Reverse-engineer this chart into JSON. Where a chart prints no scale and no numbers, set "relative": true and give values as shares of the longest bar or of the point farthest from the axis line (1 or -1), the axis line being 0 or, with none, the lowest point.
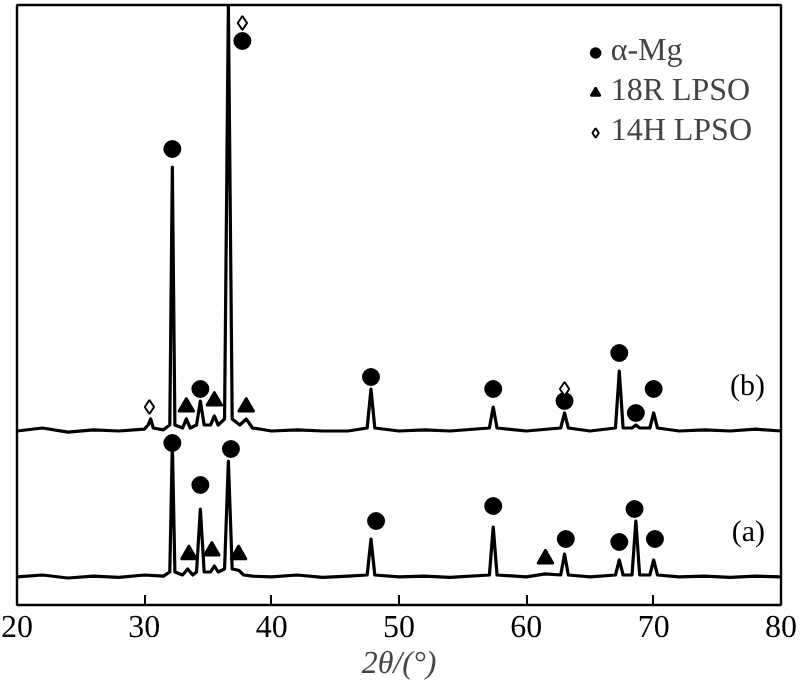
{
  "chart_data": {
    "type": "line",
    "relative": true,
    "xlabel": "2θ/(°)",
    "xlim": [
      20,
      80
    ],
    "xticks": [
      20,
      30,
      40,
      50,
      60,
      70,
      80
    ],
    "grid": false,
    "legend": "top right",
    "line_style": "solid",
    "annotations": [
      "(b)",
      "(a)"
    ],
    "series": [
      {
        "color": "#000000",
        "x": [
          20,
          22,
          24,
          26,
          28,
          30,
          30.3,
          30.5,
          30.7,
          31.5,
          32,
          32.2,
          32.4,
          33,
          33.3,
          33.6,
          34.1,
          34.4,
          34.7,
          35.2,
          35.5,
          35.8,
          36.3,
          36.6,
          36.9,
          37.5,
          38,
          38.5,
          40,
          42,
          44,
          46,
          47.5,
          47.8,
          48.1,
          50,
          52,
          54,
          57.1,
          57.4,
          57.7,
          60,
          62.7,
          63,
          63.3,
          65,
          67,
          67.3,
          67.6,
          68.3,
          68.6,
          68.9,
          69.7,
          70,
          70.3,
          72,
          74,
          76,
          78,
          80
        ],
        "values": [
          0.29,
          0.295,
          0.288,
          0.292,
          0.29,
          0.293,
          0.3,
          0.31,
          0.295,
          0.292,
          0.3,
          0.73,
          0.3,
          0.295,
          0.31,
          0.295,
          0.3,
          0.34,
          0.3,
          0.3,
          0.315,
          0.3,
          0.31,
          1.0,
          0.31,
          0.3,
          0.31,
          0.295,
          0.29,
          0.292,
          0.29,
          0.29,
          0.295,
          0.36,
          0.295,
          0.29,
          0.292,
          0.29,
          0.295,
          0.33,
          0.295,
          0.29,
          0.295,
          0.32,
          0.295,
          0.29,
          0.295,
          0.39,
          0.295,
          0.295,
          0.3,
          0.295,
          0.295,
          0.32,
          0.295,
          0.29,
          0.292,
          0.29,
          0.293,
          0.29
        ]
      },
      {
        "color": "#000000",
        "x": [
          20,
          22,
          24,
          26,
          28,
          30,
          31.5,
          32,
          32.2,
          32.4,
          33,
          33.4,
          33.8,
          34.1,
          34.4,
          34.7,
          35.2,
          35.5,
          35.8,
          36.3,
          36.6,
          36.9,
          37.4,
          37.8,
          38.5,
          40,
          42,
          44,
          46,
          47.5,
          47.8,
          48.1,
          50,
          52,
          54,
          57.1,
          57.4,
          57.7,
          60,
          61.5,
          62.7,
          63,
          63.3,
          65,
          67,
          67.3,
          67.6,
          68.3,
          68.6,
          68.9,
          69.7,
          70,
          70.3,
          72,
          74,
          76,
          78,
          80
        ],
        "values": [
          0.047,
          0.05,
          0.045,
          0.048,
          0.046,
          0.05,
          0.048,
          0.055,
          0.27,
          0.055,
          0.05,
          0.06,
          0.05,
          0.055,
          0.16,
          0.055,
          0.055,
          0.065,
          0.055,
          0.06,
          0.24,
          0.06,
          0.058,
          0.05,
          0.048,
          0.047,
          0.05,
          0.046,
          0.048,
          0.05,
          0.11,
          0.05,
          0.047,
          0.048,
          0.046,
          0.05,
          0.13,
          0.05,
          0.047,
          0.052,
          0.05,
          0.085,
          0.05,
          0.047,
          0.05,
          0.075,
          0.05,
          0.05,
          0.14,
          0.05,
          0.05,
          0.075,
          0.05,
          0.047,
          0.048,
          0.046,
          0.048,
          0.047
        ]
      },
      {
        "name": "α-Mg",
        "type": "scatter",
        "marker": "circle",
        "color": "#000000",
        "x": [
          32.2,
          34.4,
          37.7,
          47.8,
          57.4,
          63.0,
          67.3,
          68.6,
          70.0,
          32.2,
          34.4,
          36.8,
          48.2,
          57.4,
          63.1,
          67.3,
          68.5,
          70.1
        ],
        "values": [
          0.76,
          0.36,
          0.94,
          0.38,
          0.36,
          0.34,
          0.42,
          0.32,
          0.36,
          0.27,
          0.2,
          0.26,
          0.14,
          0.165,
          0.11,
          0.105,
          0.16,
          0.11
        ]
      },
      {
        "name": "18R LPSO",
        "type": "scatter",
        "marker": "triangle",
        "color": "#000000",
        "x": [
          33.3,
          35.5,
          38.0,
          33.5,
          35.3,
          37.4,
          61.5
        ],
        "values": [
          0.33,
          0.34,
          0.33,
          0.084,
          0.09,
          0.084,
          0.077
        ]
      },
      {
        "name": "14H LPSO",
        "type": "scatter",
        "marker": "diamond",
        "color": "#ffffff",
        "x": [
          30.4,
          37.7,
          63.0
        ],
        "values": [
          0.33,
          0.97,
          0.36
        ]
      }
    ]
  }
}
